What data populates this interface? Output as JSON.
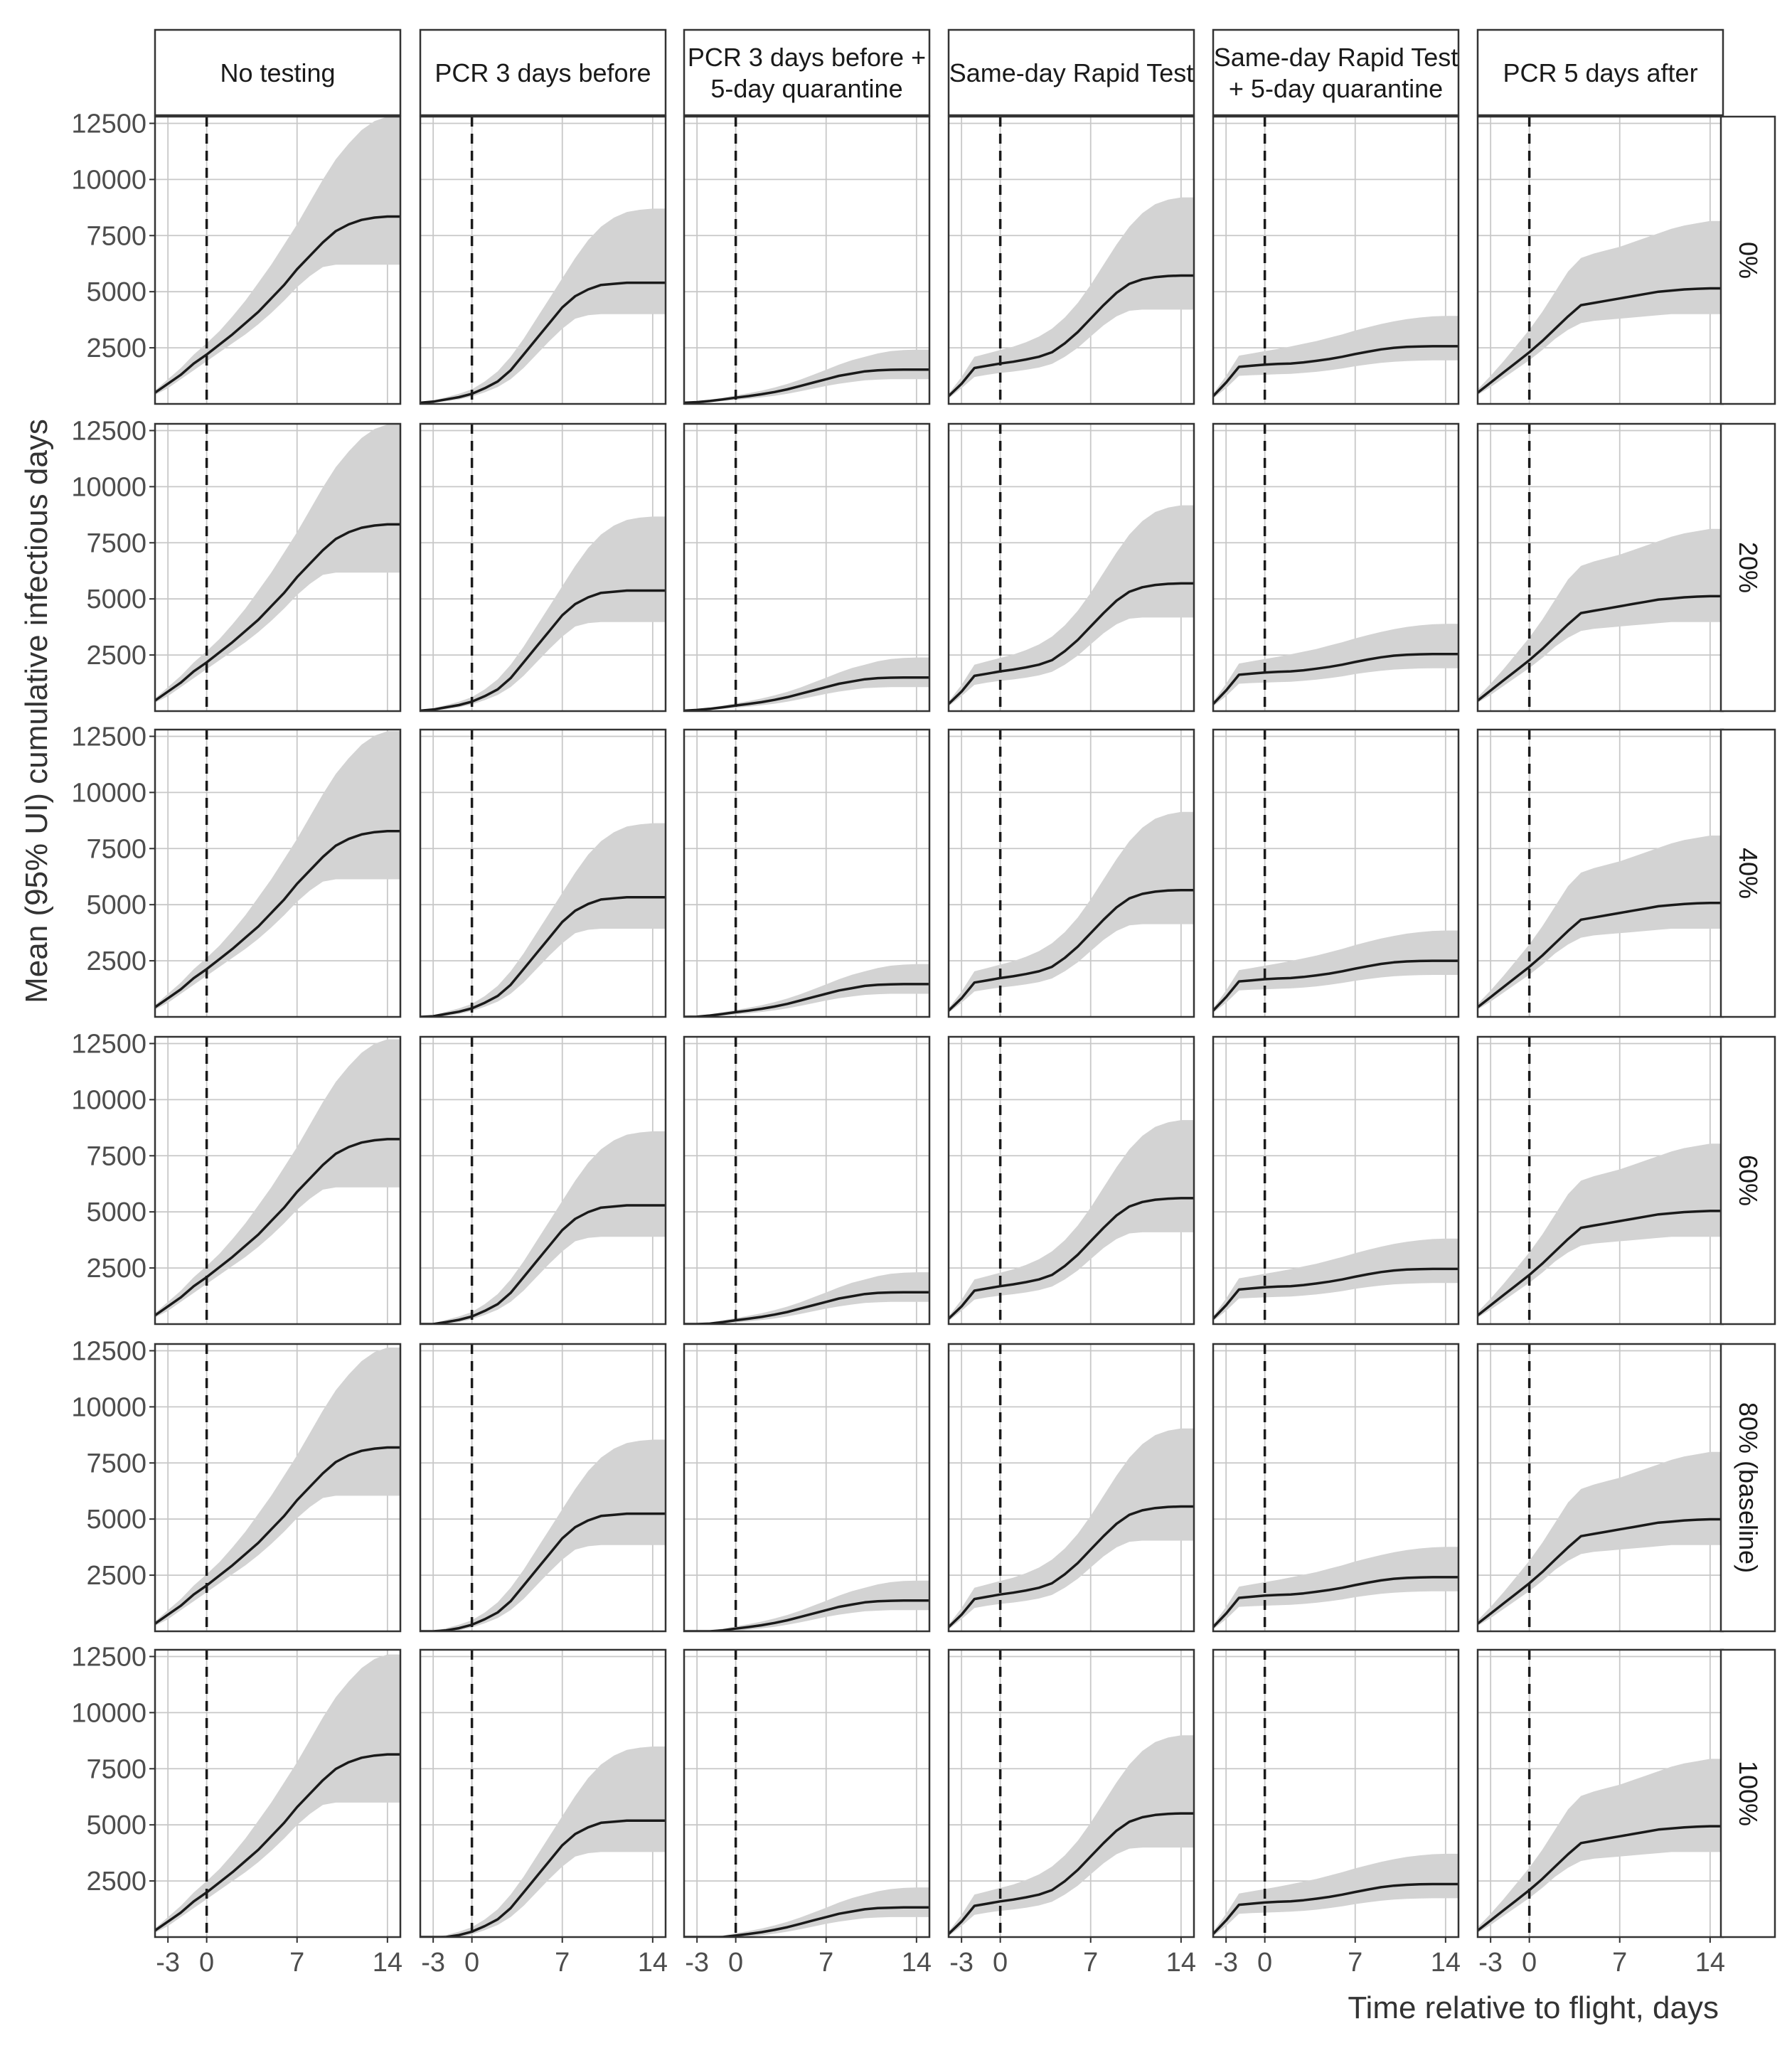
{
  "chart_data": {
    "type": "area",
    "title": "",
    "xlabel": "Time relative to flight, days",
    "ylabel": "Mean (95% UI) cumulative infectious days",
    "xlim": [
      -4,
      15
    ],
    "ylim": [
      0,
      12800
    ],
    "x_ticks": [
      -3,
      0,
      7,
      14
    ],
    "y_ticks": [
      2500,
      5000,
      7500,
      10000,
      12500
    ],
    "reference_line_x": 0,
    "grid": true,
    "columns": [
      [
        "No testing"
      ],
      [
        "PCR 3 days before"
      ],
      [
        "PCR 3 days before +",
        "5-day quarantine"
      ],
      [
        "Same-day Rapid Test"
      ],
      [
        "Same-day Rapid Test",
        "+ 5-day quarantine"
      ],
      [
        "PCR 5 days after"
      ]
    ],
    "rows": [
      "0%",
      "20%",
      "40%",
      "60%",
      "80% (baseline)",
      "100%"
    ],
    "x": [
      -4,
      -3,
      -2,
      -1,
      0,
      1,
      2,
      3,
      4,
      5,
      6,
      7,
      8,
      9,
      10,
      11,
      12,
      13,
      14,
      15
    ],
    "scenarios": [
      {
        "mean": [
          500,
          900,
          1300,
          1800,
          2200,
          2650,
          3100,
          3600,
          4100,
          4700,
          5300,
          6000,
          6600,
          7200,
          7700,
          8000,
          8200,
          8300,
          8350,
          8350
        ],
        "lower": [
          400,
          700,
          1100,
          1500,
          1900,
          2300,
          2700,
          3100,
          3550,
          4050,
          4600,
          5200,
          5700,
          6100,
          6200,
          6200,
          6200,
          6200,
          6200,
          6200
        ],
        "upper": [
          600,
          1100,
          1600,
          2200,
          2700,
          3250,
          3900,
          4600,
          5400,
          6200,
          7100,
          8000,
          9000,
          10000,
          10900,
          11600,
          12200,
          12600,
          12800,
          12800
        ]
      },
      {
        "mean": [
          50,
          100,
          200,
          300,
          450,
          700,
          1000,
          1500,
          2200,
          2900,
          3600,
          4300,
          4800,
          5100,
          5300,
          5350,
          5400,
          5400,
          5400,
          5400
        ],
        "lower": [
          30,
          60,
          120,
          200,
          330,
          520,
          750,
          1100,
          1600,
          2200,
          2800,
          3350,
          3800,
          3950,
          4000,
          4000,
          4000,
          4000,
          4000,
          4000
        ],
        "upper": [
          80,
          150,
          300,
          450,
          650,
          1000,
          1450,
          2100,
          2900,
          3800,
          4700,
          5600,
          6500,
          7300,
          7900,
          8300,
          8550,
          8650,
          8700,
          8700
        ]
      },
      {
        "mean": [
          50,
          80,
          130,
          200,
          280,
          350,
          430,
          530,
          650,
          800,
          950,
          1100,
          1250,
          1350,
          1450,
          1500,
          1520,
          1530,
          1530,
          1530
        ],
        "lower": [
          30,
          50,
          80,
          130,
          180,
          230,
          290,
          360,
          450,
          560,
          680,
          800,
          900,
          980,
          1050,
          1080,
          1100,
          1100,
          1100,
          1100
        ],
        "upper": [
          80,
          120,
          190,
          280,
          380,
          480,
          590,
          730,
          890,
          1080,
          1300,
          1520,
          1750,
          1950,
          2100,
          2250,
          2350,
          2400,
          2420,
          2420
        ]
      },
      {
        "mean": [
          350,
          900,
          1600,
          1700,
          1800,
          1880,
          1980,
          2100,
          2300,
          2700,
          3200,
          3800,
          4400,
          4950,
          5350,
          5550,
          5650,
          5700,
          5720,
          5720
        ],
        "lower": [
          250,
          700,
          1200,
          1300,
          1380,
          1440,
          1520,
          1620,
          1780,
          2100,
          2500,
          3000,
          3500,
          3900,
          4150,
          4200,
          4200,
          4200,
          4200,
          4200
        ],
        "upper": [
          450,
          1200,
          2100,
          2250,
          2400,
          2550,
          2750,
          3000,
          3350,
          3850,
          4500,
          5300,
          6200,
          7100,
          7900,
          8500,
          8900,
          9100,
          9200,
          9200
        ]
      },
      {
        "mean": [
          350,
          950,
          1650,
          1700,
          1750,
          1780,
          1800,
          1850,
          1920,
          2000,
          2100,
          2220,
          2330,
          2430,
          2500,
          2540,
          2560,
          2570,
          2570,
          2570
        ],
        "lower": [
          250,
          700,
          1250,
          1280,
          1300,
          1320,
          1340,
          1380,
          1430,
          1500,
          1580,
          1680,
          1760,
          1830,
          1880,
          1910,
          1930,
          1940,
          1940,
          1940
        ],
        "upper": [
          450,
          1250,
          2150,
          2250,
          2350,
          2450,
          2560,
          2680,
          2800,
          2950,
          3100,
          3270,
          3420,
          3560,
          3680,
          3780,
          3850,
          3900,
          3920,
          3920
        ]
      },
      {
        "mean": [
          500,
          950,
          1400,
          1850,
          2300,
          2800,
          3350,
          3900,
          4400,
          4500,
          4600,
          4700,
          4800,
          4900,
          5000,
          5050,
          5100,
          5130,
          5150,
          5150
        ],
        "lower": [
          400,
          750,
          1150,
          1550,
          1950,
          2400,
          2900,
          3300,
          3600,
          3700,
          3750,
          3800,
          3850,
          3900,
          3950,
          4000,
          4000,
          4000,
          4000,
          4000
        ],
        "upper": [
          650,
          1250,
          1900,
          2600,
          3300,
          4100,
          5000,
          5900,
          6500,
          6700,
          6850,
          7000,
          7200,
          7400,
          7600,
          7800,
          7950,
          8050,
          8150,
          8150
        ]
      }
    ],
    "row_offsets": [
      0,
      -30,
      -70,
      -110,
      -160,
      -210
    ]
  }
}
